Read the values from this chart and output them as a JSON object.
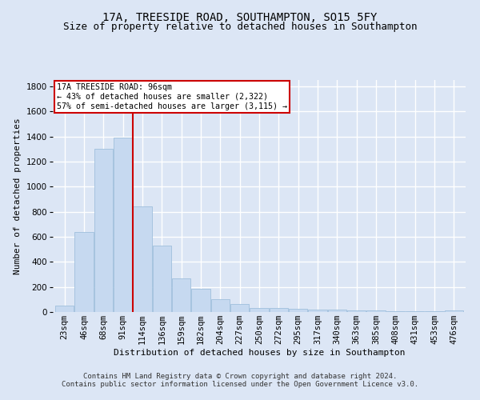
{
  "title": "17A, TREESIDE ROAD, SOUTHAMPTON, SO15 5FY",
  "subtitle": "Size of property relative to detached houses in Southampton",
  "xlabel": "Distribution of detached houses by size in Southampton",
  "ylabel": "Number of detached properties",
  "categories": [
    "23sqm",
    "46sqm",
    "68sqm",
    "91sqm",
    "114sqm",
    "136sqm",
    "159sqm",
    "182sqm",
    "204sqm",
    "227sqm",
    "250sqm",
    "272sqm",
    "295sqm",
    "317sqm",
    "340sqm",
    "363sqm",
    "385sqm",
    "408sqm",
    "431sqm",
    "453sqm",
    "476sqm"
  ],
  "values": [
    50,
    640,
    1300,
    1390,
    840,
    530,
    270,
    185,
    100,
    65,
    30,
    30,
    28,
    22,
    18,
    13,
    12,
    8,
    6,
    5,
    10
  ],
  "bar_color": "#c6d9f0",
  "bar_edge_color": "#9fbfdc",
  "vline_color": "#cc0000",
  "vline_x_index": 3,
  "annotation_text_line1": "17A TREESIDE ROAD: 96sqm",
  "annotation_text_line2": "← 43% of detached houses are smaller (2,322)",
  "annotation_text_line3": "57% of semi-detached houses are larger (3,115) →",
  "annotation_box_color": "#cc0000",
  "annotation_bg_color": "#ffffff",
  "footer_line1": "Contains HM Land Registry data © Crown copyright and database right 2024.",
  "footer_line2": "Contains public sector information licensed under the Open Government Licence v3.0.",
  "ylim": [
    0,
    1850
  ],
  "yticks": [
    0,
    200,
    400,
    600,
    800,
    1000,
    1200,
    1400,
    1600,
    1800
  ],
  "background_color": "#dce6f5",
  "grid_color": "#ffffff",
  "title_fontsize": 10,
  "subtitle_fontsize": 9,
  "axis_label_fontsize": 8,
  "tick_fontsize": 7.5,
  "footer_fontsize": 6.5
}
